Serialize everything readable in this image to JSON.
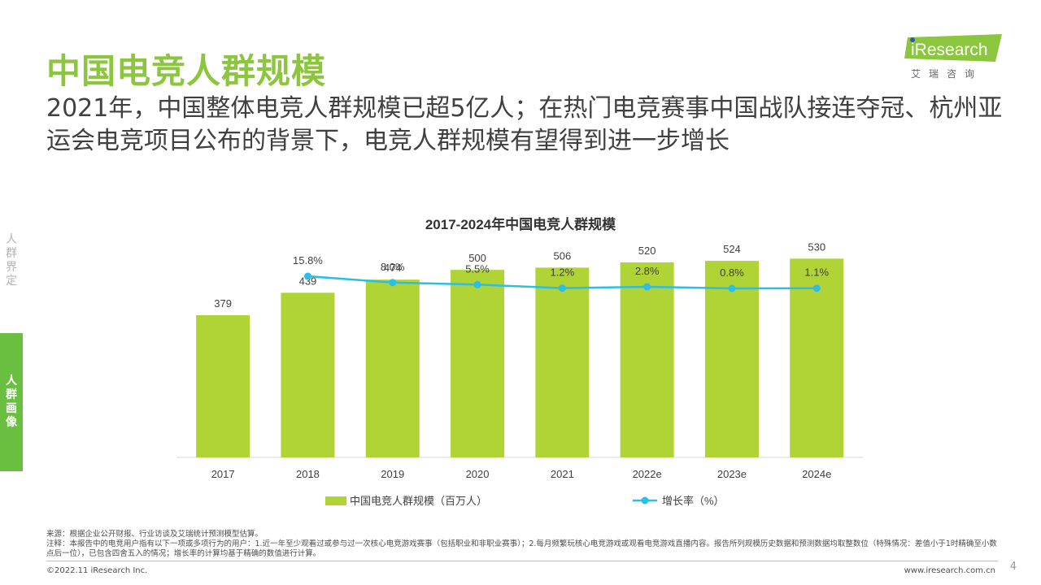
{
  "page": {
    "title": "中国电竞人群规模",
    "subtitle": "2021年，中国整体电竞人群规模已超5亿人；在热门电竞赛事中国战队接连夺冠、杭州亚运会电竞项目公布的背景下，电竞人群规模有望得到进一步增长",
    "logo_text": "iResearch",
    "logo_cn": "艾瑞咨询",
    "page_number": "4"
  },
  "sidebar": {
    "items": [
      {
        "label": "人群界定",
        "active": false
      },
      {
        "label": "人群画像",
        "active": true
      }
    ]
  },
  "footer": {
    "source": "来源：根据企业公开财报、行业访谈及艾瑞统计预测模型估算。",
    "note": "注释：本报告中的电竞用户指有以下一项或多项行为的用户：1.近一年至少观看过或参与过一次核心电竞游戏赛事（包括职业和非职业赛事）；2.每月频繁玩核心电竞游戏或观看电竞游戏直播内容。报告所列规模历史数据和预测数据均取整数位（特殊情况：差值小于1时精确至小数点后一位），已包含四舍五入的情况；增长率的计算均基于精确的数值进行计算。",
    "copyright": "©2022.11 iResearch Inc.",
    "website": "www.iresearch.com.cn"
  },
  "colors": {
    "brand_green": "#8cc63f",
    "bar": "#b0d335",
    "line": "#2bbfe8",
    "sidebar_active": "#6abf40"
  },
  "chart_data": {
    "type": "bar",
    "title": "2017-2024年中国电竞人群规模",
    "categories": [
      "2017",
      "2018",
      "2019",
      "2020",
      "2021",
      "2022e",
      "2023e",
      "2024e"
    ],
    "series": [
      {
        "name": "中国电竞人群规模（百万人）",
        "type": "bar",
        "values": [
          379,
          439,
          474,
          500,
          506,
          520,
          524,
          530
        ],
        "labels": [
          "379",
          "439",
          "474",
          "500",
          "506",
          "520",
          "524",
          "530"
        ]
      },
      {
        "name": "增长率（%）",
        "type": "line",
        "values": [
          null,
          15.8,
          8.0,
          5.5,
          1.2,
          2.8,
          0.8,
          1.1
        ],
        "labels": [
          "",
          "15.8%",
          "8.0%",
          "5.5%",
          "1.2%",
          "2.8%",
          "0.8%",
          "1.1%"
        ]
      }
    ],
    "legend_position": "bottom",
    "grid": false
  }
}
